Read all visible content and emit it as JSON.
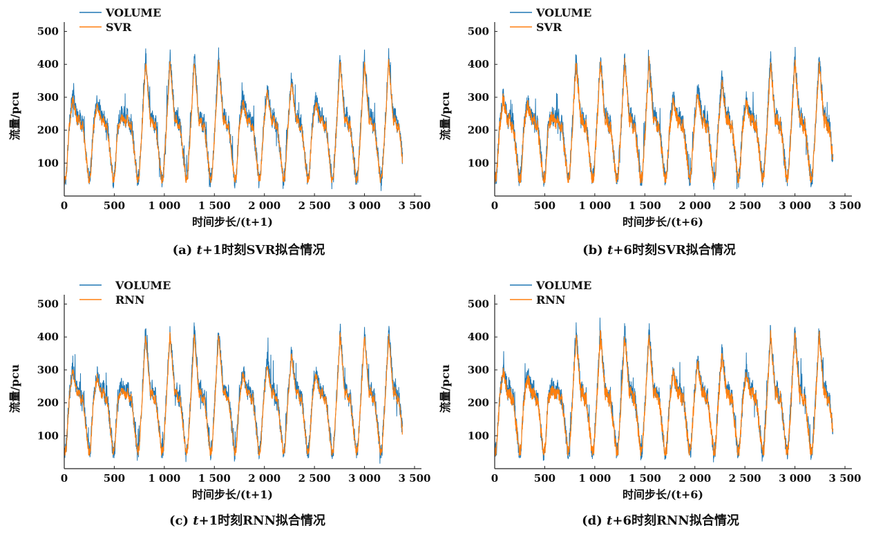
{
  "colors": {
    "volume": "#1f77b4",
    "model": "#ff7f0e",
    "axis": "#222222"
  },
  "chart_data": [
    {
      "id": "a",
      "type": "line",
      "xlim": [
        0,
        3500
      ],
      "ylim": [
        0,
        520
      ],
      "xticks": [
        "0",
        "500",
        "1 000",
        "1 500",
        "2 000",
        "2 500",
        "3 000",
        "3 500"
      ],
      "yticks": [
        "100",
        "200",
        "300",
        "400",
        "500"
      ],
      "xlabel": "时间步长/(t+1)",
      "ylabel": "流量/pcu",
      "caption_prefix": "(a)",
      "caption_var": "t",
      "caption_rest": "+1时刻SVR拟合情况",
      "legend": "top-left",
      "series": [
        {
          "name": "VOLUME"
        },
        {
          "name": "SVR"
        }
      ]
    },
    {
      "id": "b",
      "type": "line",
      "xlim": [
        0,
        3500
      ],
      "ylim": [
        0,
        520
      ],
      "xticks": [
        "0",
        "500",
        "1 000",
        "1 500",
        "2 000",
        "2 500",
        "3 000",
        "3 500"
      ],
      "yticks": [
        "100",
        "200",
        "300",
        "400",
        "500"
      ],
      "xlabel": "时间步长/(t+6)",
      "ylabel": "流量/pcu",
      "caption_prefix": "(b)",
      "caption_var": "t",
      "caption_rest": "+6时刻SVR拟合情况",
      "legend": "top-left",
      "series": [
        {
          "name": "VOLUME"
        },
        {
          "name": "SVR"
        }
      ]
    },
    {
      "id": "c",
      "type": "line",
      "xlim": [
        0,
        3500
      ],
      "ylim": [
        0,
        520
      ],
      "xticks": [
        "0",
        "500",
        "1 000",
        "1 500",
        "2 000",
        "2 500",
        "3 000",
        "3 500"
      ],
      "yticks": [
        "100",
        "200",
        "300",
        "400",
        "500"
      ],
      "xlabel": "时间步长/(t+1)",
      "ylabel": "流量/pcu",
      "caption_prefix": "(c)",
      "caption_var": "t",
      "caption_rest": "+1时刻RNN拟合情况",
      "legend": "top-left",
      "series": [
        {
          "name": "VOLUME"
        },
        {
          "name": "RNN"
        }
      ]
    },
    {
      "id": "d",
      "type": "line",
      "xlim": [
        0,
        3500
      ],
      "ylim": [
        0,
        520
      ],
      "xticks": [
        "0",
        "500",
        "1 000",
        "1 500",
        "2 000",
        "2 500",
        "3 000",
        "3 500"
      ],
      "yticks": [
        "100",
        "200",
        "300",
        "400",
        "500"
      ],
      "xlabel": "时间步长/(t+6)",
      "ylabel": "流量/pcu",
      "caption_prefix": "(d)",
      "caption_var": "t",
      "caption_rest": "+6时刻RNN拟合情况",
      "legend": "top-left",
      "series": [
        {
          "name": "VOLUME"
        },
        {
          "name": "RNN"
        }
      ]
    }
  ]
}
